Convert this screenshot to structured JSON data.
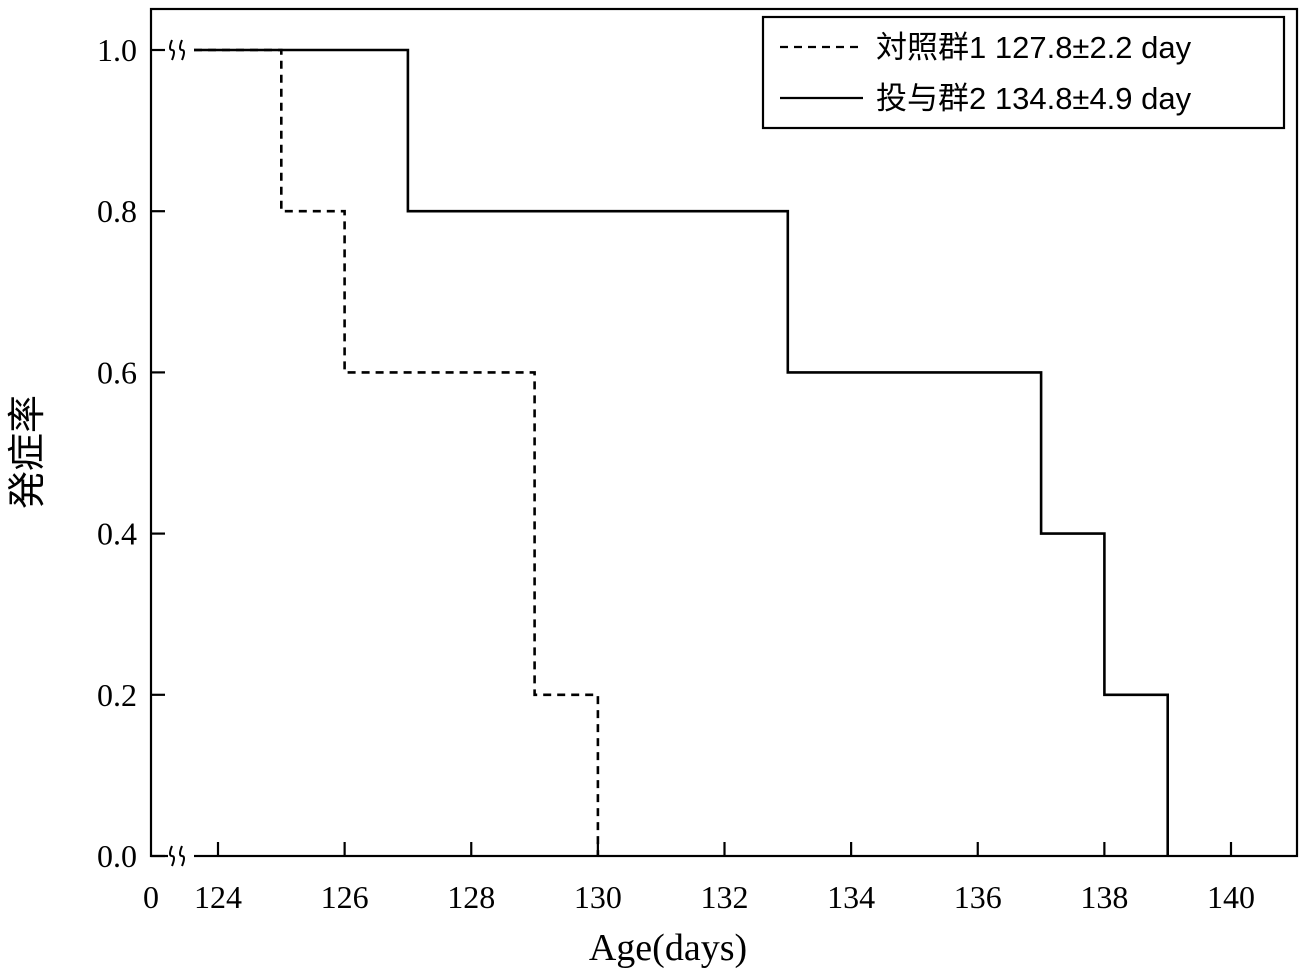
{
  "chart_data": {
    "type": "line",
    "step": true,
    "xlabel": "Age(days)",
    "ylabel": "発症率",
    "x_origin_label": "0",
    "x_axis_break": true,
    "y_axis_break": true,
    "xlim": [
      123,
      141
    ],
    "ylim": [
      0,
      1.0
    ],
    "xticks": [
      124,
      126,
      128,
      130,
      132,
      134,
      136,
      138,
      140
    ],
    "xtick_labels": [
      "124",
      "126",
      "128",
      "130",
      "132",
      "134",
      "136",
      "138",
      "140"
    ],
    "yticks": [
      0.0,
      0.2,
      0.4,
      0.6,
      0.8,
      1.0
    ],
    "ytick_labels": [
      "0.0",
      "0.2",
      "0.4",
      "0.6",
      "0.8",
      "1.0"
    ],
    "grid": false,
    "legend_position": "top-right",
    "series": [
      {
        "name": "対照群1 127.8±2.2 day",
        "line_style": "dashed",
        "color": "#000000",
        "points": [
          [
            123,
            1.0
          ],
          [
            125,
            1.0
          ],
          [
            125,
            0.8
          ],
          [
            126,
            0.8
          ],
          [
            126,
            0.6
          ],
          [
            129,
            0.6
          ],
          [
            129,
            0.2
          ],
          [
            130,
            0.2
          ],
          [
            130,
            0.0
          ]
        ]
      },
      {
        "name": "投与群2 134.8±4.9 day",
        "line_style": "solid",
        "color": "#000000",
        "points": [
          [
            123,
            1.0
          ],
          [
            127,
            1.0
          ],
          [
            127,
            0.8
          ],
          [
            133,
            0.8
          ],
          [
            133,
            0.6
          ],
          [
            137,
            0.6
          ],
          [
            137,
            0.4
          ],
          [
            138,
            0.4
          ],
          [
            138,
            0.2
          ],
          [
            139,
            0.2
          ],
          [
            139,
            0.0
          ]
        ]
      }
    ]
  }
}
